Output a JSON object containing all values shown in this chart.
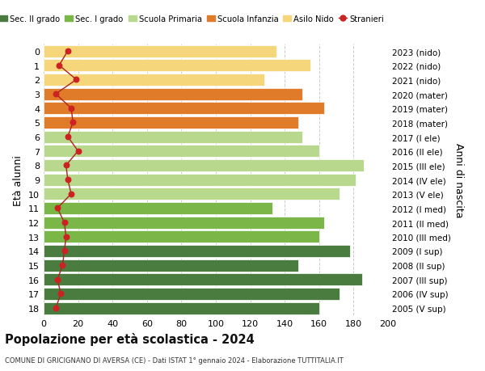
{
  "ages": [
    18,
    17,
    16,
    15,
    14,
    13,
    12,
    11,
    10,
    9,
    8,
    7,
    6,
    5,
    4,
    3,
    2,
    1,
    0
  ],
  "right_labels": [
    "2005 (V sup)",
    "2006 (IV sup)",
    "2007 (III sup)",
    "2008 (II sup)",
    "2009 (I sup)",
    "2010 (III med)",
    "2011 (II med)",
    "2012 (I med)",
    "2013 (V ele)",
    "2014 (IV ele)",
    "2015 (III ele)",
    "2016 (II ele)",
    "2017 (I ele)",
    "2018 (mater)",
    "2019 (mater)",
    "2020 (mater)",
    "2021 (nido)",
    "2022 (nido)",
    "2023 (nido)"
  ],
  "bar_values": [
    160,
    172,
    185,
    148,
    178,
    160,
    163,
    133,
    172,
    181,
    186,
    160,
    150,
    148,
    163,
    150,
    128,
    155,
    135
  ],
  "bar_colors": [
    "#4a7c3f",
    "#4a7c3f",
    "#4a7c3f",
    "#4a7c3f",
    "#4a7c3f",
    "#7ab648",
    "#7ab648",
    "#7ab648",
    "#b8d98d",
    "#b8d98d",
    "#b8d98d",
    "#b8d98d",
    "#b8d98d",
    "#e07b2a",
    "#e07b2a",
    "#e07b2a",
    "#f5d67a",
    "#f5d67a",
    "#f5d67a"
  ],
  "stranieri_values": [
    7,
    10,
    8,
    11,
    12,
    13,
    12,
    8,
    16,
    14,
    13,
    20,
    14,
    17,
    16,
    7,
    19,
    9,
    14
  ],
  "legend_labels": [
    "Sec. II grado",
    "Sec. I grado",
    "Scuola Primaria",
    "Scuola Infanzia",
    "Asilo Nido",
    "Stranieri"
  ],
  "legend_colors": [
    "#4a7c3f",
    "#7ab648",
    "#b8d98d",
    "#e07b2a",
    "#f5d67a",
    "#cc2222"
  ],
  "ylabel_left": "Età alunni",
  "ylabel_right": "Anni di nascita",
  "title": "Popolazione per età scolastica - 2024",
  "subtitle": "COMUNE DI GRICIGNANO DI AVERSA (CE) - Dati ISTAT 1° gennaio 2024 - Elaborazione TUTTITALIA.IT",
  "xlim": [
    0,
    200
  ],
  "xticks": [
    0,
    20,
    40,
    60,
    80,
    100,
    120,
    140,
    160,
    180,
    200
  ],
  "background_color": "#ffffff",
  "grid_color": "#cccccc",
  "stranieri_color": "#cc2222",
  "stranieri_line_color": "#aa2222"
}
